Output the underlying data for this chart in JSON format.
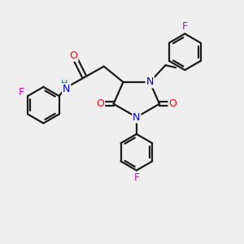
{
  "background_color": "#efefef",
  "atom_colors": {
    "C": "#000000",
    "N": "#0000cd",
    "O": "#ff0000",
    "F": "#cc00cc",
    "H": "#008080"
  },
  "bond_color": "#1a1a1a",
  "bond_width": 1.6,
  "fig_size": [
    3.0,
    3.0
  ],
  "dpi": 100
}
